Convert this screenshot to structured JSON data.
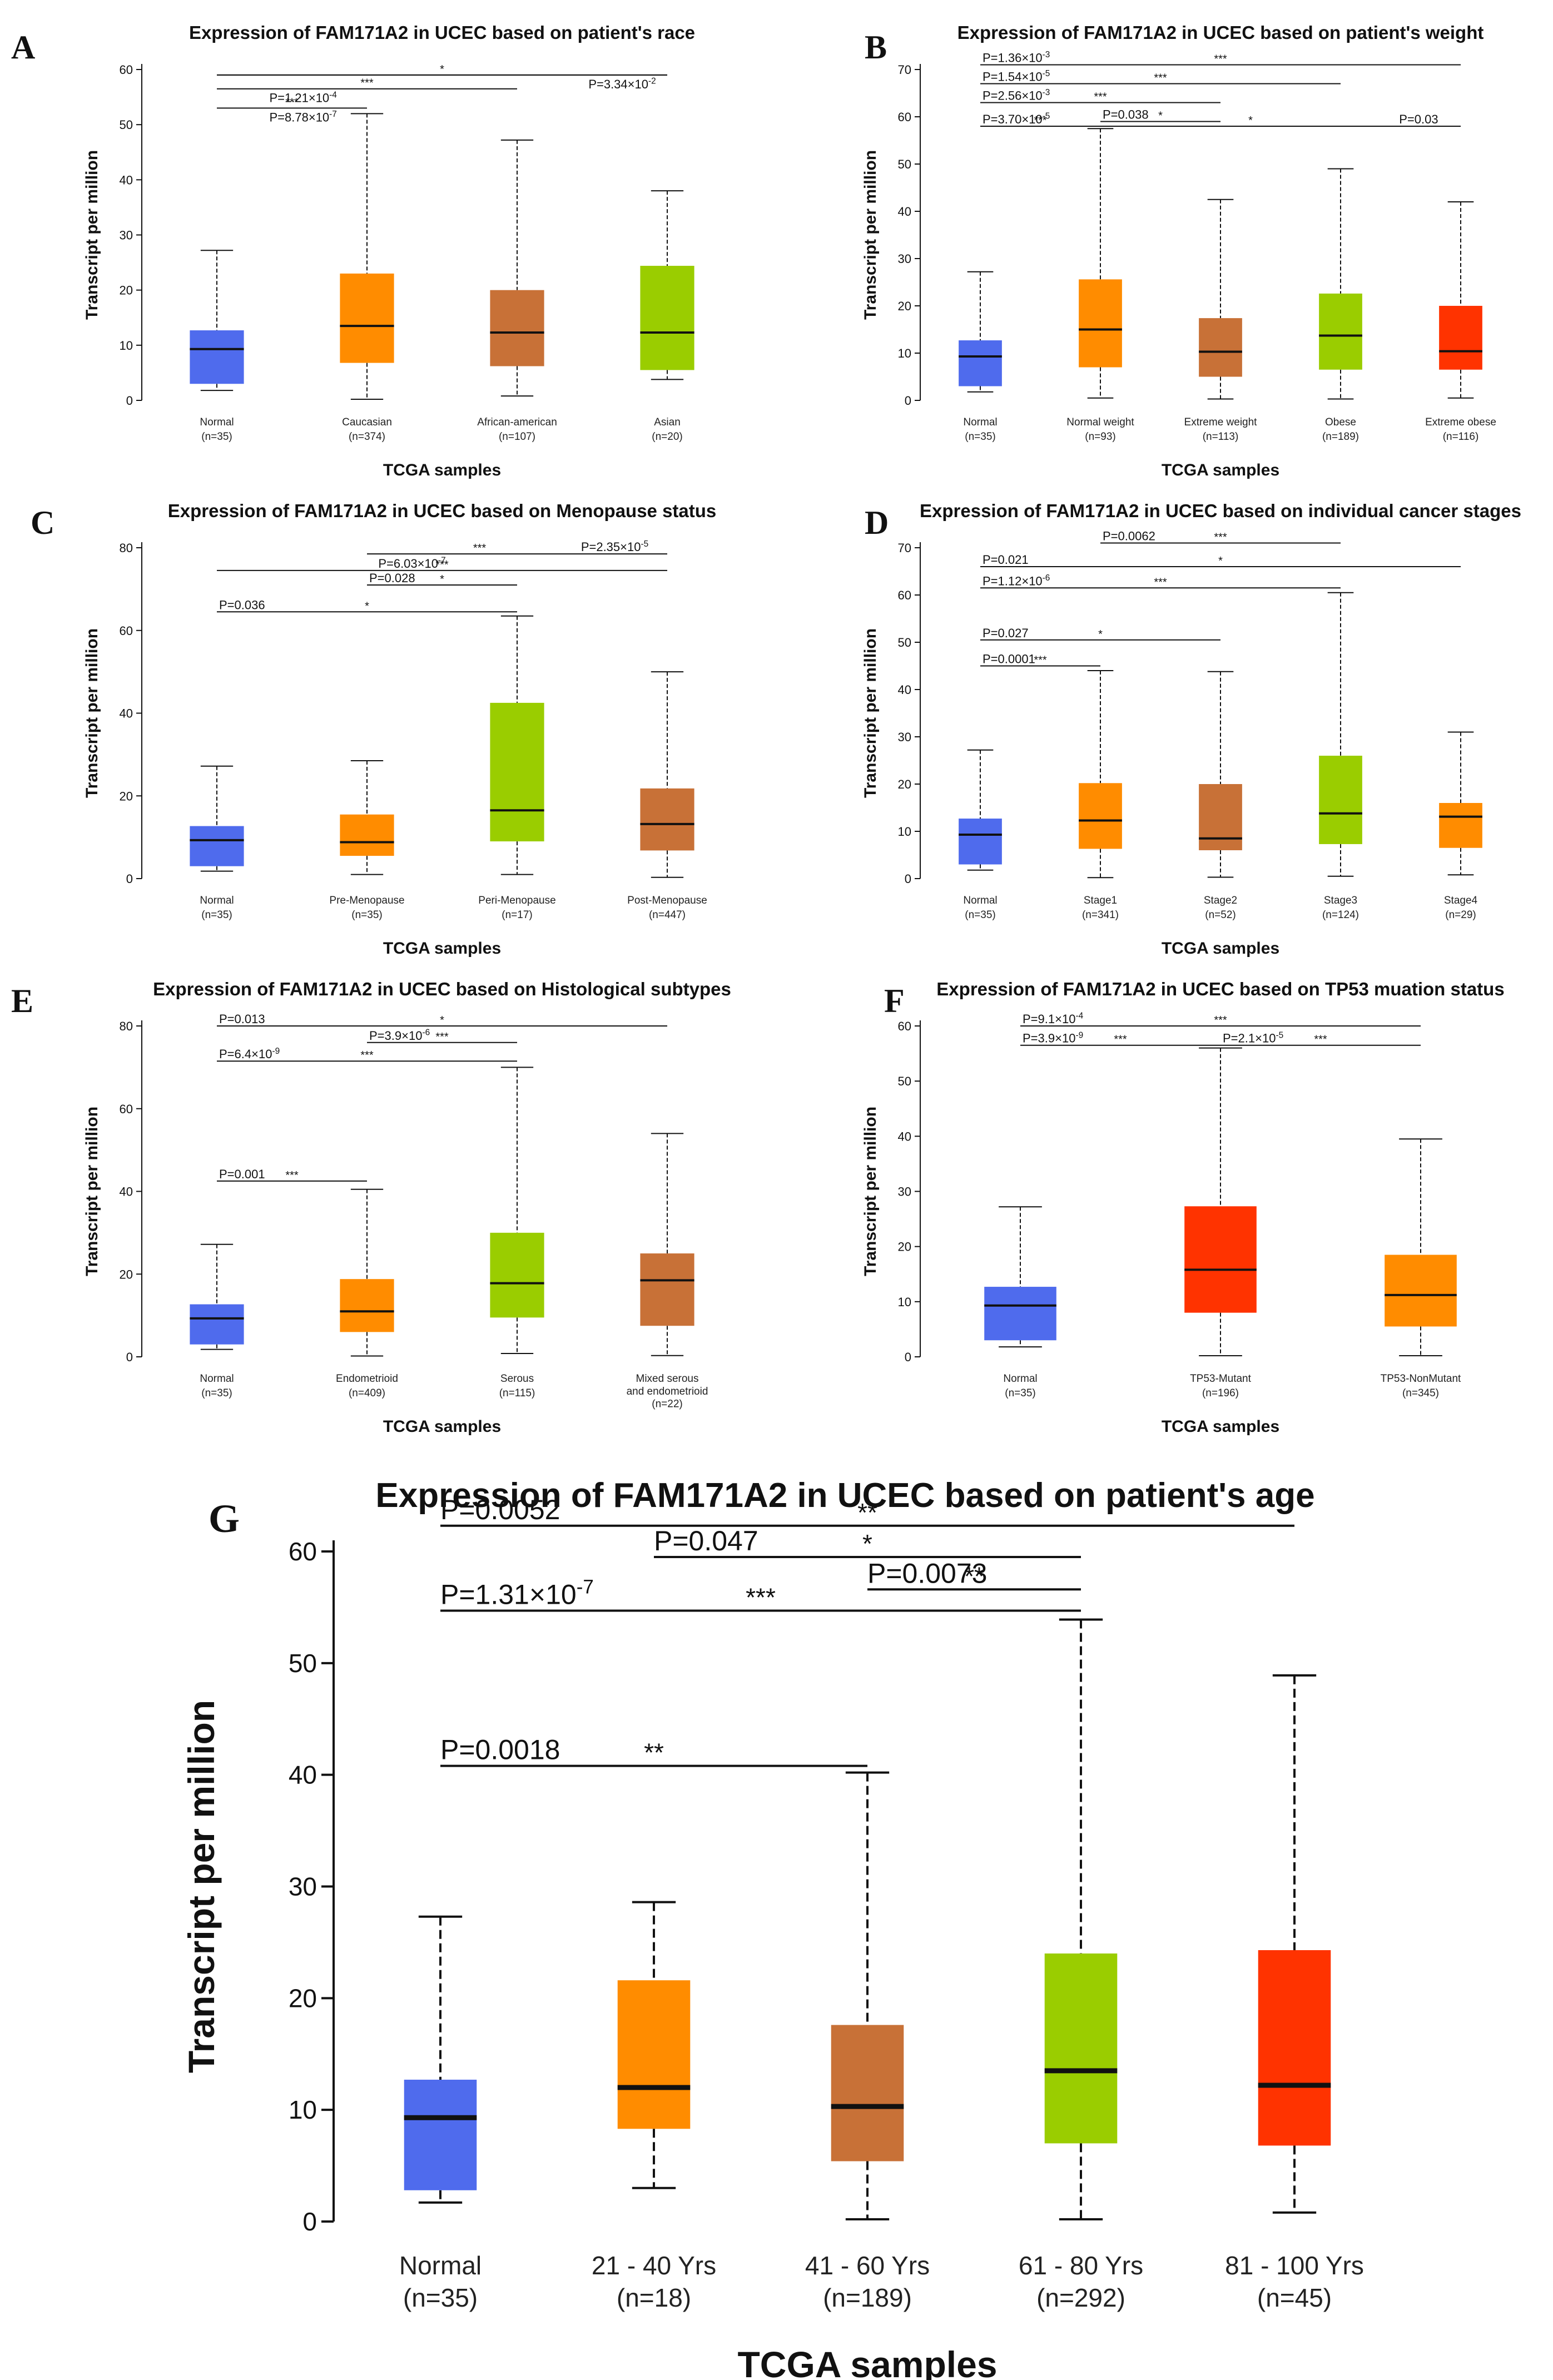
{
  "chart_data": [
    {
      "panel_letter": "A",
      "type": "boxplot",
      "title": "Expression of FAM171A2 in UCEC based on patient's race",
      "xlabel": "TCGA samples",
      "ylabel": "Transcript per million",
      "ylim": [
        0,
        60
      ],
      "yticks": [
        "0",
        "10",
        "20",
        "30",
        "40",
        "50",
        "60"
      ],
      "categories": [
        "Normal",
        "Caucasian",
        "African-american",
        "Asian"
      ],
      "counts": [
        "(n=35)",
        "(n=374)",
        "(n=107)",
        "(n=20)"
      ],
      "box_colors": [
        "#4f6bed",
        "#ff8c00",
        "#c87137",
        "#9acd00"
      ],
      "boxes": [
        {
          "min": 1.8,
          "q1": 3.0,
          "median": 9.3,
          "q3": 12.7,
          "max": 27.2
        },
        {
          "min": 0.2,
          "q1": 6.8,
          "median": 13.5,
          "q3": 23.0,
          "max": 52.0
        },
        {
          "min": 0.8,
          "q1": 6.2,
          "median": 12.3,
          "q3": 20.0,
          "max": 47.2
        },
        {
          "min": 3.8,
          "q1": 5.5,
          "median": 12.3,
          "q3": 24.4,
          "max": 38.0
        }
      ],
      "comparisons": [
        {
          "from": 0,
          "to": 3,
          "y": 59.0,
          "p": "",
          "stars": "*",
          "p_pos": "none"
        },
        {
          "from": 0,
          "to": 1,
          "y": 53.0,
          "p": "P=8.78×10-7",
          "stars": "***",
          "p_pos": "below"
        },
        {
          "from": 0,
          "to": 2,
          "y": 56.5,
          "p": "P=1.21×10-4",
          "stars": "***",
          "p_pos": "below"
        },
        {
          "from": 0,
          "to": 3,
          "y": 59.0,
          "p": "P=3.34×10-2",
          "stars": "",
          "p_pos": "below-end"
        }
      ]
    },
    {
      "panel_letter": "B",
      "type": "boxplot",
      "title": "Expression of FAM171A2 in UCEC based on patient's weight",
      "xlabel": "TCGA samples",
      "ylabel": "Transcript per million",
      "ylim": [
        0,
        70
      ],
      "yticks": [
        "0",
        "10",
        "20",
        "30",
        "40",
        "50",
        "60",
        "70"
      ],
      "categories": [
        "Normal",
        "Normal weight",
        "Extreme weight",
        "Obese",
        "Extreme obese"
      ],
      "counts": [
        "(n=35)",
        "(n=93)",
        "(n=113)",
        "(n=189)",
        "(n=116)"
      ],
      "box_colors": [
        "#4f6bed",
        "#ff8c00",
        "#c87137",
        "#9acd00",
        "#ff3300"
      ],
      "boxes": [
        {
          "min": 1.8,
          "q1": 3.0,
          "median": 9.3,
          "q3": 12.7,
          "max": 27.2
        },
        {
          "min": 0.5,
          "q1": 7.0,
          "median": 15.0,
          "q3": 25.6,
          "max": 57.5
        },
        {
          "min": 0.3,
          "q1": 5.0,
          "median": 10.3,
          "q3": 17.4,
          "max": 42.5
        },
        {
          "min": 0.3,
          "q1": 6.5,
          "median": 13.7,
          "q3": 22.6,
          "max": 49.0
        },
        {
          "min": 0.5,
          "q1": 6.5,
          "median": 10.4,
          "q3": 20.0,
          "max": 42.0
        }
      ],
      "comparisons": [
        {
          "from": 0,
          "to": 4,
          "y": 71.0,
          "p": "P=1.36×10-3",
          "stars": "***",
          "p_pos": "above"
        },
        {
          "from": 0,
          "to": 3,
          "y": 67.0,
          "p": "P=1.54×10-5",
          "stars": "***",
          "p_pos": "above"
        },
        {
          "from": 0,
          "to": 2,
          "y": 63.0,
          "p": "P=2.56×10-3",
          "stars": "***",
          "p_pos": "above"
        },
        {
          "from": 1,
          "to": 2,
          "y": 59.0,
          "p": "P=0.038",
          "stars": "*",
          "p_pos": "above"
        },
        {
          "from": 0,
          "to": 1,
          "y": 58.0,
          "p": "P=3.70×10-5",
          "stars": "***",
          "p_pos": "above"
        },
        {
          "from": 1,
          "to": 4,
          "y": 58.0,
          "p": "P=0.03",
          "stars": "*",
          "p_pos": "above-end"
        }
      ]
    },
    {
      "panel_letter": "C",
      "type": "boxplot",
      "title": "Expression of FAM171A2 in UCEC based on Menopause status",
      "xlabel": "TCGA samples",
      "ylabel": "Transcript per million",
      "ylim": [
        0,
        80
      ],
      "yticks": [
        "0",
        "20",
        "40",
        "60",
        "80"
      ],
      "categories": [
        "Normal",
        "Pre-Menopause",
        "Peri-Menopause",
        "Post-Menopause"
      ],
      "counts": [
        "(n=35)",
        "(n=35)",
        "(n=17)",
        "(n=447)"
      ],
      "box_colors": [
        "#4f6bed",
        "#ff8c00",
        "#9acd00",
        "#c87137"
      ],
      "boxes": [
        {
          "min": 1.8,
          "q1": 3.0,
          "median": 9.3,
          "q3": 12.7,
          "max": 27.2
        },
        {
          "min": 1.0,
          "q1": 5.5,
          "median": 8.8,
          "q3": 15.5,
          "max": 28.5
        },
        {
          "min": 1.0,
          "q1": 9.0,
          "median": 16.5,
          "q3": 42.5,
          "max": 63.5
        },
        {
          "min": 0.3,
          "q1": 6.8,
          "median": 13.2,
          "q3": 21.8,
          "max": 50.0
        }
      ],
      "comparisons": [
        {
          "from": 1,
          "to": 3,
          "y": 78.5,
          "p": "P=2.35×10-5",
          "stars": "***",
          "p_pos": "above-end"
        },
        {
          "from": 0,
          "to": 3,
          "y": 74.5,
          "p": "P=6.03×10-7",
          "stars": "***",
          "p_pos": "above-mid"
        },
        {
          "from": 1,
          "to": 2,
          "y": 71.0,
          "p": "P=0.028",
          "stars": "*",
          "p_pos": "above"
        },
        {
          "from": 0,
          "to": 2,
          "y": 64.5,
          "p": "P=0.036",
          "stars": "*",
          "p_pos": "above"
        }
      ]
    },
    {
      "panel_letter": "D",
      "type": "boxplot",
      "title": "Expression of FAM171A2 in UCEC based on individual cancer stages",
      "xlabel": "TCGA samples",
      "ylabel": "Transcript per million",
      "ylim": [
        0,
        70
      ],
      "yticks": [
        "0",
        "10",
        "20",
        "30",
        "40",
        "50",
        "60",
        "70"
      ],
      "categories": [
        "Normal",
        "Stage1",
        "Stage2",
        "Stage3",
        "Stage4"
      ],
      "counts": [
        "(n=35)",
        "(n=341)",
        "(n=52)",
        "(n=124)",
        "(n=29)"
      ],
      "box_colors": [
        "#4f6bed",
        "#ff8c00",
        "#c87137",
        "#9acd00",
        "#ff8c00"
      ],
      "boxes": [
        {
          "min": 1.8,
          "q1": 3.0,
          "median": 9.3,
          "q3": 12.7,
          "max": 27.2
        },
        {
          "min": 0.2,
          "q1": 6.3,
          "median": 12.3,
          "q3": 20.2,
          "max": 44.0
        },
        {
          "min": 0.3,
          "q1": 6.0,
          "median": 8.5,
          "q3": 20.0,
          "max": 43.8
        },
        {
          "min": 0.5,
          "q1": 7.3,
          "median": 13.8,
          "q3": 26.0,
          "max": 60.5
        },
        {
          "min": 0.8,
          "q1": 6.5,
          "median": 13.1,
          "q3": 16.0,
          "max": 31.0
        }
      ],
      "comparisons": [
        {
          "from": 1,
          "to": 3,
          "y": 71.0,
          "p": "P=0.0062",
          "stars": "***",
          "p_pos": "above"
        },
        {
          "from": 0,
          "to": 4,
          "y": 66.0,
          "p": "P=0.021",
          "stars": "*",
          "p_pos": "above"
        },
        {
          "from": 0,
          "to": 3,
          "y": 61.5,
          "p": "P=1.12×10-6",
          "stars": "***",
          "p_pos": "above"
        },
        {
          "from": 0,
          "to": 2,
          "y": 50.5,
          "p": "P=0.027",
          "stars": "*",
          "p_pos": "above"
        },
        {
          "from": 0,
          "to": 1,
          "y": 45.0,
          "p": "P=0.0001",
          "stars": "***",
          "p_pos": "above"
        }
      ]
    },
    {
      "panel_letter": "E",
      "type": "boxplot",
      "title": "Expression of FAM171A2 in UCEC based on Histological subtypes",
      "xlabel": "TCGA samples",
      "ylabel": "Transcript per million",
      "ylim": [
        0,
        80
      ],
      "yticks": [
        "0",
        "20",
        "40",
        "60",
        "80"
      ],
      "categories": [
        "Normal",
        "Endometrioid",
        "Serous",
        "Mixed serous and endometrioid"
      ],
      "counts": [
        "(n=35)",
        "(n=409)",
        "(n=115)",
        "(n=22)"
      ],
      "box_colors": [
        "#4f6bed",
        "#ff8c00",
        "#9acd00",
        "#c87137"
      ],
      "boxes": [
        {
          "min": 1.8,
          "q1": 3.0,
          "median": 9.3,
          "q3": 12.7,
          "max": 27.2
        },
        {
          "min": 0.2,
          "q1": 6.0,
          "median": 11.0,
          "q3": 18.8,
          "max": 40.5
        },
        {
          "min": 0.8,
          "q1": 9.5,
          "median": 17.8,
          "q3": 30.0,
          "max": 70.0
        },
        {
          "min": 0.3,
          "q1": 7.5,
          "median": 18.5,
          "q3": 25.0,
          "max": 54.0
        }
      ],
      "comparisons": [
        {
          "from": 0,
          "to": 3,
          "y": 80.0,
          "p": "P=0.013",
          "stars": "*",
          "p_pos": "above"
        },
        {
          "from": 1,
          "to": 2,
          "y": 76.0,
          "p": "P=3.9×10-6",
          "stars": "***",
          "p_pos": "above"
        },
        {
          "from": 0,
          "to": 2,
          "y": 71.5,
          "p": "P=6.4×10-9",
          "stars": "***",
          "p_pos": "above"
        },
        {
          "from": 0,
          "to": 1,
          "y": 42.5,
          "p": "P=0.001",
          "stars": "***",
          "p_pos": "above"
        }
      ]
    },
    {
      "panel_letter": "F",
      "type": "boxplot",
      "title": "Expression of FAM171A2 in UCEC based on TP53 muation status",
      "xlabel": "TCGA samples",
      "ylabel": "Transcript per million",
      "ylim": [
        0,
        60
      ],
      "yticks": [
        "0",
        "10",
        "20",
        "30",
        "40",
        "50",
        "60"
      ],
      "categories": [
        "Normal",
        "TP53-Mutant",
        "TP53-NonMutant"
      ],
      "counts": [
        "(n=35)",
        "(n=196)",
        "(n=345)"
      ],
      "box_colors": [
        "#4f6bed",
        "#ff3300",
        "#ff8c00"
      ],
      "boxes": [
        {
          "min": 1.8,
          "q1": 3.0,
          "median": 9.3,
          "q3": 12.7,
          "max": 27.2
        },
        {
          "min": 0.2,
          "q1": 8.0,
          "median": 15.8,
          "q3": 27.3,
          "max": 56.0
        },
        {
          "min": 0.2,
          "q1": 5.5,
          "median": 11.2,
          "q3": 18.5,
          "max": 39.5
        }
      ],
      "comparisons": [
        {
          "from": 0,
          "to": 2,
          "y": 60.0,
          "p": "P=9.1×10-4",
          "stars": "***",
          "p_pos": "above"
        },
        {
          "from": 0,
          "to": 1,
          "y": 56.5,
          "p": "P=3.9×10-9",
          "stars": "***",
          "p_pos": "above"
        },
        {
          "from": 1,
          "to": 2,
          "y": 56.5,
          "p": "P=2.1×10-5",
          "stars": "***",
          "p_pos": "above"
        }
      ]
    },
    {
      "panel_letter": "G",
      "type": "boxplot",
      "title": "Expression of FAM171A2 in UCEC based on patient's age",
      "xlabel": "TCGA samples",
      "ylabel": "Transcript per million",
      "ylim": [
        0,
        60
      ],
      "yticks": [
        "0",
        "10",
        "20",
        "30",
        "40",
        "50",
        "60"
      ],
      "categories": [
        "Normal",
        "21 - 40 Yrs",
        "41 - 60 Yrs",
        "61 - 80 Yrs",
        "81 - 100 Yrs"
      ],
      "counts": [
        "(n=35)",
        "(n=18)",
        "(n=189)",
        "(n=292)",
        "(n=45)"
      ],
      "box_colors": [
        "#4f6bed",
        "#ff8c00",
        "#c87137",
        "#9acd00",
        "#ff3300"
      ],
      "boxes": [
        {
          "min": 1.7,
          "q1": 2.8,
          "median": 9.3,
          "q3": 12.7,
          "max": 27.3
        },
        {
          "min": 3.0,
          "q1": 8.3,
          "median": 12.0,
          "q3": 21.6,
          "max": 28.6
        },
        {
          "min": 0.2,
          "q1": 5.4,
          "median": 10.3,
          "q3": 17.6,
          "max": 40.2
        },
        {
          "min": 0.2,
          "q1": 7.0,
          "median": 13.5,
          "q3": 24.0,
          "max": 53.9
        },
        {
          "min": 0.8,
          "q1": 6.8,
          "median": 12.2,
          "q3": 24.3,
          "max": 48.9
        }
      ],
      "comparisons": [
        {
          "from": 0,
          "to": 4,
          "y": 62.3,
          "p": "P=0.0052",
          "stars": "**",
          "p_pos": "above"
        },
        {
          "from": 1,
          "to": 3,
          "y": 59.5,
          "p": "P=0.047",
          "stars": "*",
          "p_pos": "above"
        },
        {
          "from": 2,
          "to": 3,
          "y": 56.6,
          "p": "P=0.0073",
          "stars": "**",
          "p_pos": "above"
        },
        {
          "from": 0,
          "to": 3,
          "y": 54.7,
          "p": "P=1.31×10-7",
          "stars": "***",
          "p_pos": "above"
        },
        {
          "from": 0,
          "to": 2,
          "y": 40.8,
          "p": "P=0.0018",
          "stars": "**",
          "p_pos": "above"
        }
      ]
    }
  ]
}
